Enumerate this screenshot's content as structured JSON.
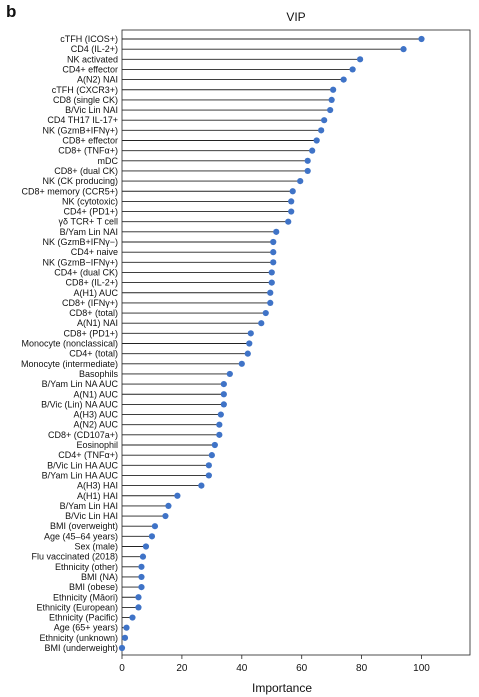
{
  "panel_label": "b",
  "chart_data": {
    "type": "lollipop",
    "title": "VIP",
    "xlabel": "Importance",
    "xlim": [
      0,
      110
    ],
    "xticks": [
      0,
      20,
      40,
      60,
      80,
      100
    ],
    "point_color": "#3f73c7",
    "stem_color": "#222222",
    "grid": false,
    "categories": [
      "cTFH (ICOS+)",
      "CD4 (IL-2+)",
      "NK activated",
      "CD4+ effector",
      "A(N2) NAI",
      "cTFH (CXCR3+)",
      "CD8 (single CK)",
      "B/Vic Lin NAI",
      "CD4 TH17 IL-17+",
      "NK (GzmB+IFNγ+)",
      "CD8+ effector",
      "CD8+ (TNFα+)",
      "mDC",
      "CD8+ (dual CK)",
      "NK (CK producing)",
      "CD8+ memory (CCR5+)",
      "NK (cytotoxic)",
      "CD4+ (PD1+)",
      "γδ TCR+ T cell",
      "B/Yam Lin NAI",
      "NK (GzmB+IFNγ−)",
      "CD4+ naive",
      "NK (GzmB−IFNγ+)",
      "CD4+ (dual CK)",
      "CD8+ (IL-2+)",
      "A(H1) AUC",
      "CD8+ (IFNγ+)",
      "CD8+ (total)",
      "A(N1) NAI",
      "CD8+ (PD1+)",
      "Monocyte (nonclassical)",
      "CD4+ (total)",
      "Monocyte (intermediate)",
      "Basophils",
      "B/Yam Lin NA AUC",
      "A(N1) AUC",
      "B/Vic (Lin) NA AUC",
      "A(H3) AUC",
      "A(N2) AUC",
      "CD8+ (CD107a+)",
      "Eosinophil",
      "CD4+ (TNFα+)",
      "B/Vic Lin HA AUC",
      "B/Yam Lin HA AUC",
      "A(H3) HAI",
      "A(H1) HAI",
      "B/Yam Lin HAI",
      "B/Vic Lin HAI",
      "BMI (overweight)",
      "Age (45–64 years)",
      "Sex (male)",
      "Flu vaccinated (2018)",
      "Ethnicity (other)",
      "BMI (NA)",
      "BMI (obese)",
      "Ethnicity (Māori)",
      "Ethnicity (European)",
      "Ethnicity (Pacific)",
      "Age (65+ years)",
      "Ethnicity (unknown)",
      "BMI (underweight)"
    ],
    "values": [
      100,
      94,
      79.5,
      77,
      74,
      70.5,
      70,
      69.5,
      67.5,
      66.5,
      65,
      63.5,
      62,
      62,
      59.5,
      57,
      56.5,
      56.5,
      55.5,
      51.5,
      50.5,
      50.5,
      50.5,
      50,
      50,
      49.5,
      49.5,
      48,
      46.5,
      43,
      42.5,
      42,
      40,
      36,
      34,
      34,
      34,
      33,
      32.5,
      32.5,
      31,
      30,
      29,
      29,
      26.5,
      18.5,
      15.5,
      14.5,
      11,
      10,
      8,
      7,
      6.5,
      6.5,
      6.5,
      5.5,
      5.5,
      3.5,
      1.5,
      1,
      0
    ]
  }
}
